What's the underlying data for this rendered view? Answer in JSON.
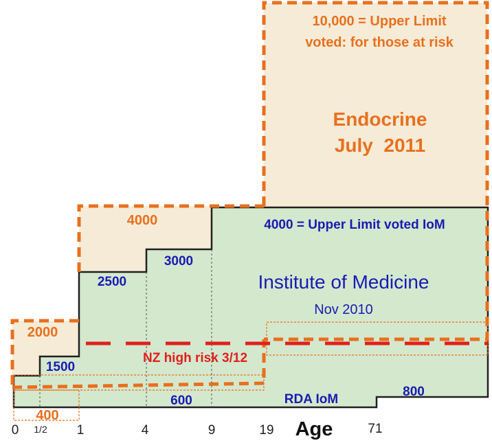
{
  "colors": {
    "orange": "#E8701E",
    "blue": "#1B1BB0",
    "red": "#E0201C",
    "beige": "#F5EBD6",
    "green": "#D4E8CE",
    "dark": "#202020"
  },
  "endocrine": {
    "limit_line1": "10,000 = Upper Limit",
    "limit_line2": "voted: for those at risk",
    "title_line1": "Endocrine",
    "title_line2": "July  2011"
  },
  "iom": {
    "limit_text": "4000 = Upper Limit voted IoM",
    "title": "Institute of Medicine",
    "date": "Nov 2010",
    "rda_label": "RDA IoM"
  },
  "values": {
    "v2000": "2000",
    "v1500": "1500",
    "v4000": "4000",
    "v2500": "2500",
    "v3000": "3000",
    "v600": "600",
    "v800": "800",
    "v400": "400"
  },
  "nz": {
    "label": "NZ high risk 3/12"
  },
  "axis": {
    "title": "Age",
    "ticks": [
      "0",
      "1/2",
      "1",
      "4",
      "9",
      "19",
      "71"
    ]
  }
}
